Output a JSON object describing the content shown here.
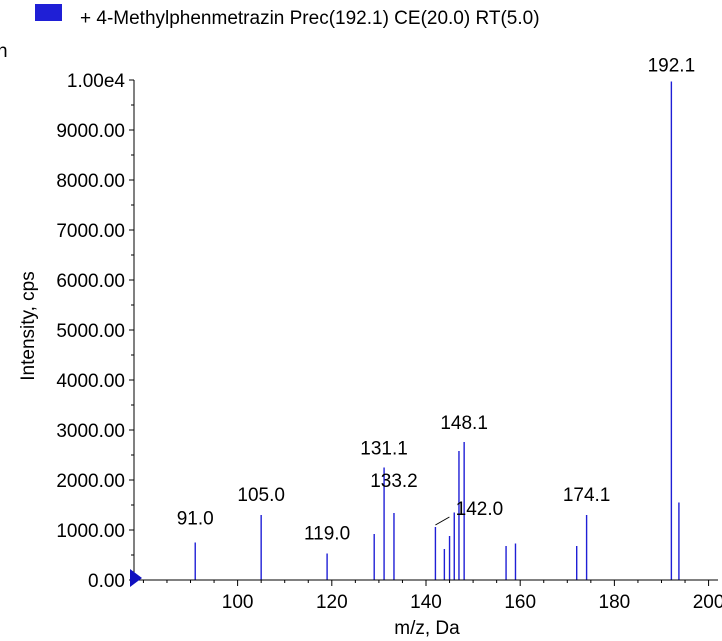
{
  "legend": {
    "swatch_color": "#1f1fd6",
    "label": "+ 4-Methylphenmetrazin Prec(192.1) CE(20.0) RT(5.0)"
  },
  "corner_glyph": "h",
  "chart_data": {
    "type": "bar",
    "subtype": "mass-spectrum-sticks",
    "xlabel": "m/z, Da",
    "ylabel": "Intensity, cps",
    "xlim": [
      78,
      202
    ],
    "ylim": [
      0,
      10000
    ],
    "xticks": [
      100,
      120,
      140,
      160,
      180,
      200
    ],
    "yticks": [
      {
        "value": 0,
        "label": "0.00"
      },
      {
        "value": 1000,
        "label": "1000.00"
      },
      {
        "value": 2000,
        "label": "2000.00"
      },
      {
        "value": 3000,
        "label": "3000.00"
      },
      {
        "value": 4000,
        "label": "4000.00"
      },
      {
        "value": 5000,
        "label": "5000.00"
      },
      {
        "value": 6000,
        "label": "6000.00"
      },
      {
        "value": 7000,
        "label": "7000.00"
      },
      {
        "value": 8000,
        "label": "8000.00"
      },
      {
        "value": 9000,
        "label": "9000.00"
      },
      {
        "value": 10000,
        "label": "1.00e4"
      }
    ],
    "series": [
      {
        "color": "#1f1fd6",
        "peaks": [
          {
            "mz": 91.0,
            "intensity": 750,
            "label": "91.0"
          },
          {
            "mz": 105.0,
            "intensity": 1300,
            "label": "105.0"
          },
          {
            "mz": 119.0,
            "intensity": 530,
            "label": "119.0"
          },
          {
            "mz": 129.0,
            "intensity": 920
          },
          {
            "mz": 131.1,
            "intensity": 2250,
            "label": "131.1"
          },
          {
            "mz": 133.2,
            "intensity": 1340,
            "label": "133.2"
          },
          {
            "mz": 142.0,
            "intensity": 1060,
            "label": "142.0"
          },
          {
            "mz": 143.9,
            "intensity": 620
          },
          {
            "mz": 145.0,
            "intensity": 880
          },
          {
            "mz": 146.0,
            "intensity": 1350
          },
          {
            "mz": 147.0,
            "intensity": 2580
          },
          {
            "mz": 148.1,
            "intensity": 2760,
            "label": "148.1"
          },
          {
            "mz": 157.0,
            "intensity": 680
          },
          {
            "mz": 159.0,
            "intensity": 730
          },
          {
            "mz": 172.0,
            "intensity": 680
          },
          {
            "mz": 174.1,
            "intensity": 1300,
            "label": "174.1"
          },
          {
            "mz": 192.1,
            "intensity": 9970,
            "label": "192.1"
          },
          {
            "mz": 193.7,
            "intensity": 1550
          }
        ]
      }
    ],
    "grid": false,
    "legend_position": "top"
  }
}
